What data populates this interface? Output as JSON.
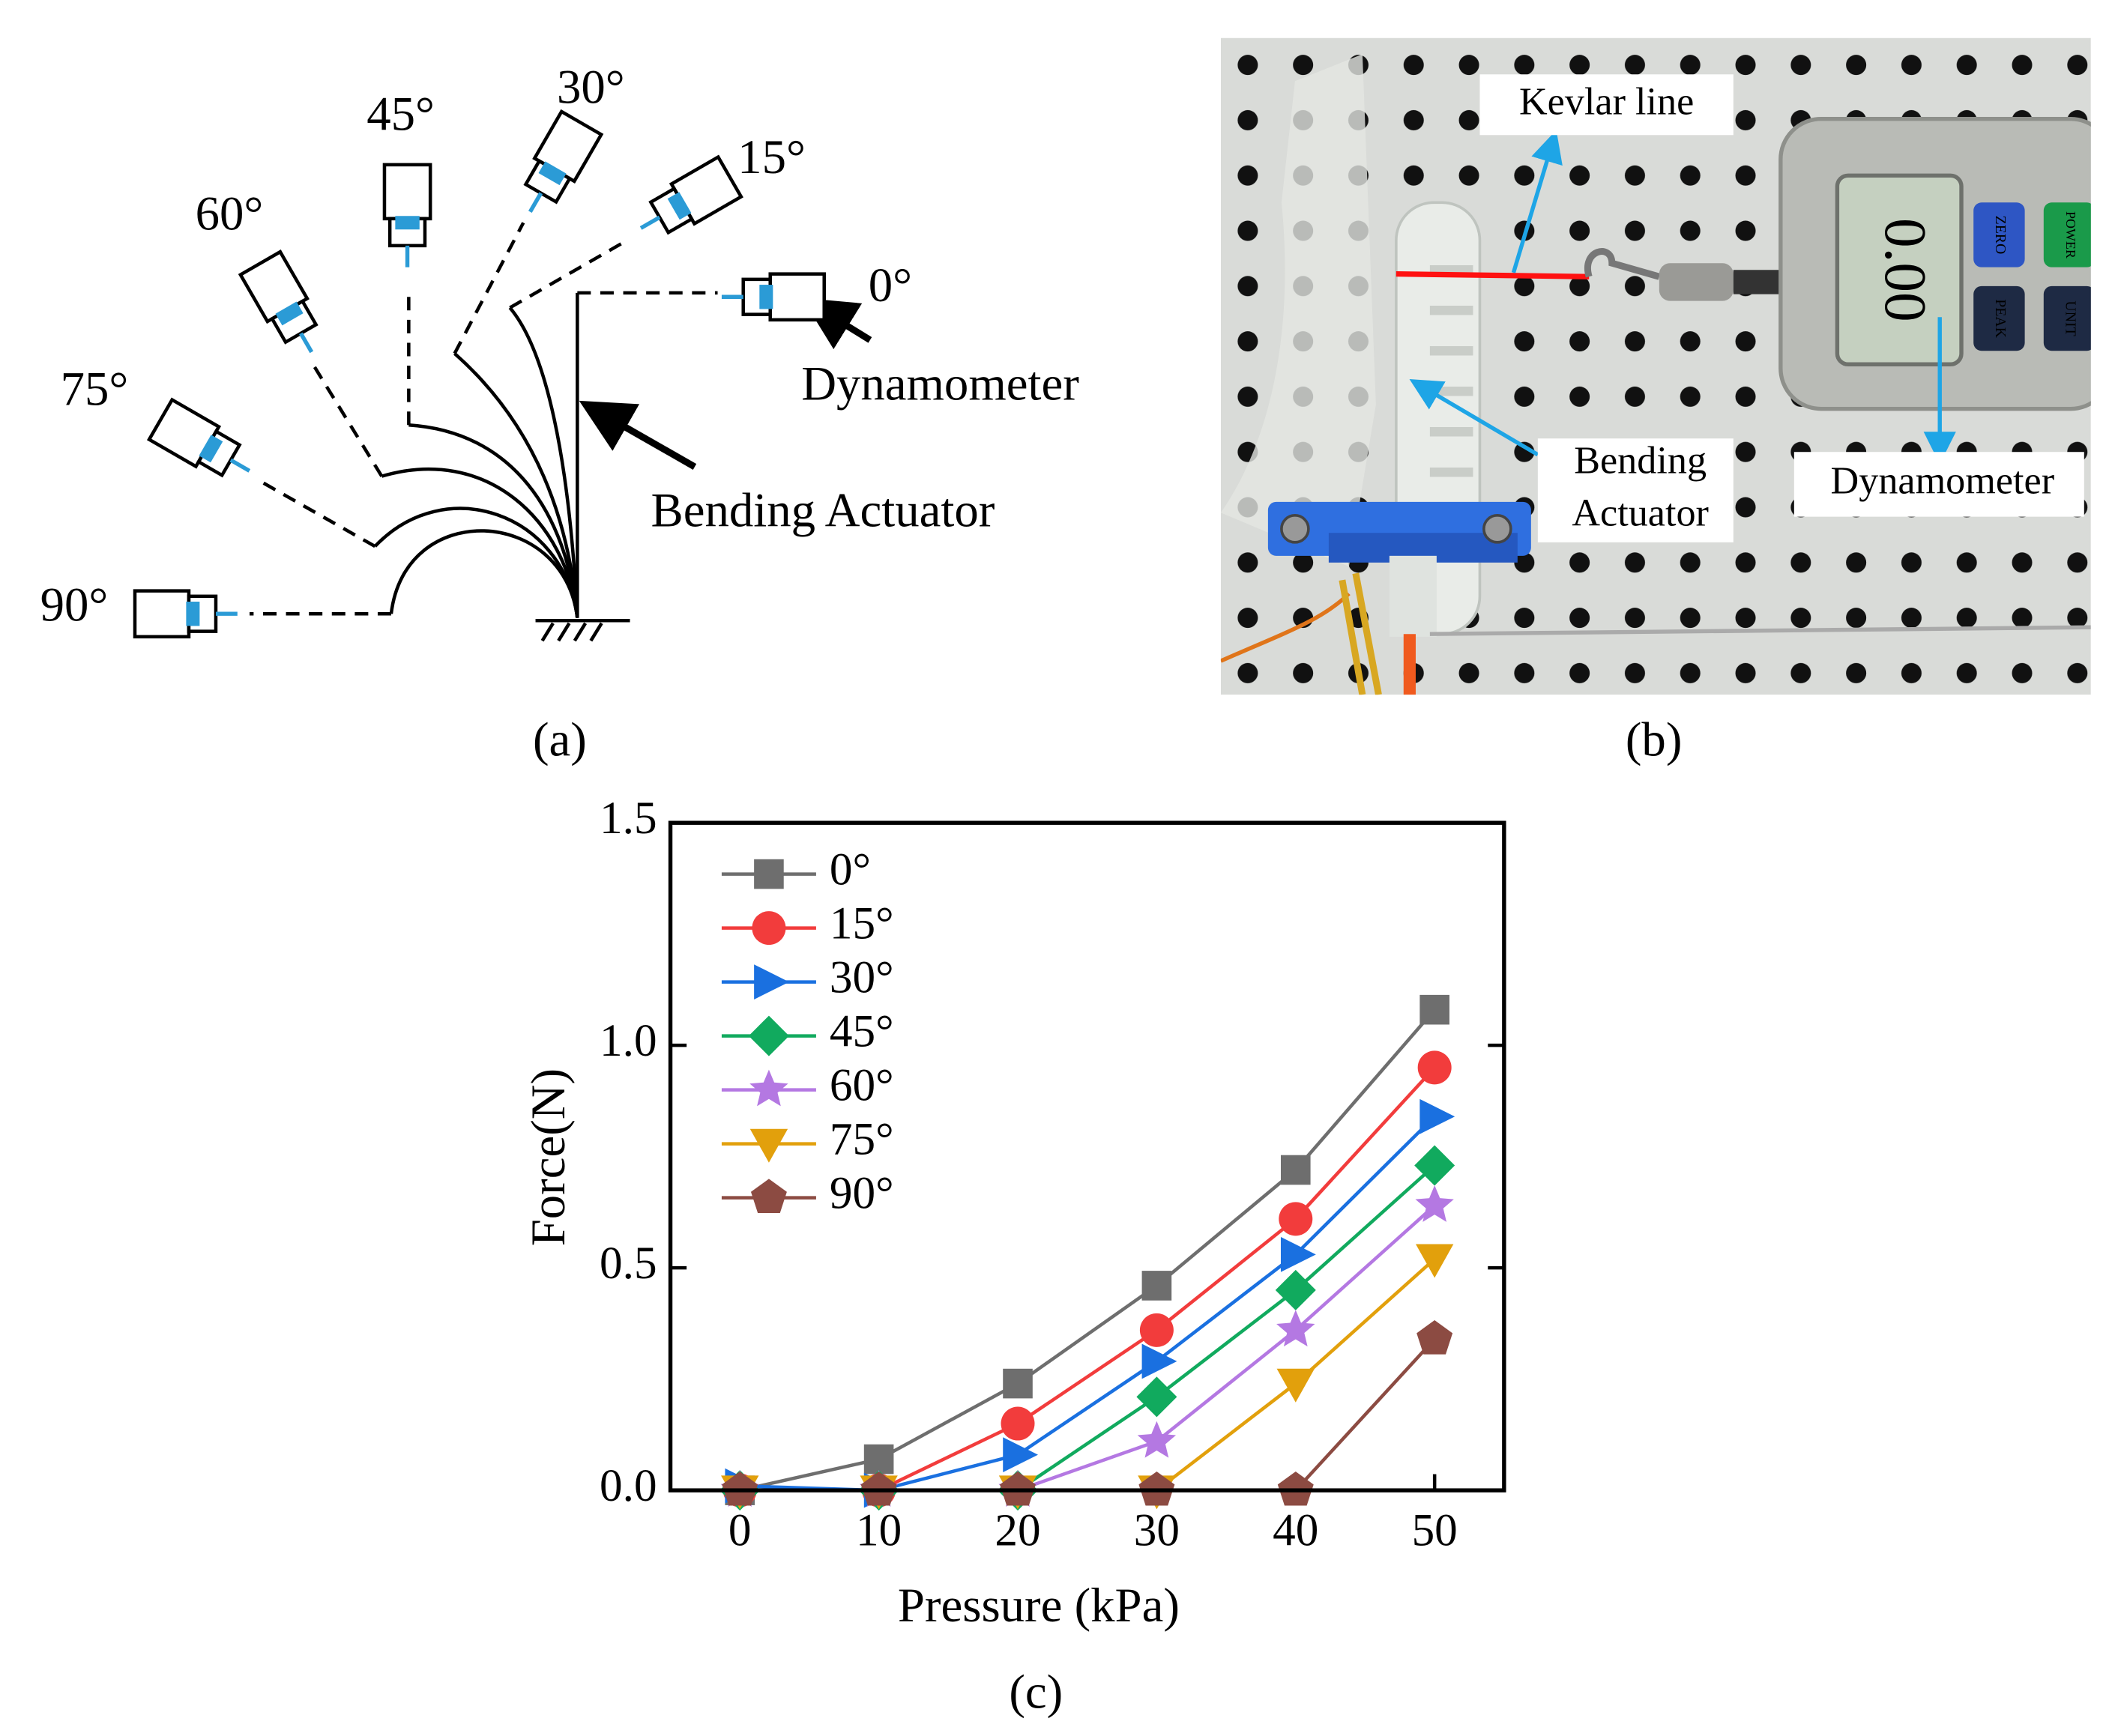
{
  "panel_a": {
    "angles": [
      "90°",
      "75°",
      "60°",
      "45°",
      "30°",
      "15°",
      "0°"
    ],
    "dynamometer": "Dynamometer",
    "actuator": "Bending Actuator",
    "label": "(a)"
  },
  "panel_b": {
    "kevlar": "Kevlar line",
    "actuator": [
      "Bending",
      "Actuator"
    ],
    "dynamometer": "Dynamometer",
    "buttons": [
      "ZERO",
      "POWER",
      "PEAK",
      "UNIT"
    ],
    "label": "(b)"
  },
  "chart_data": {
    "type": "line",
    "label": "(c)",
    "x_label": "Pressure (kPa)",
    "y_label": "Force(N)",
    "x": [
      0,
      10,
      20,
      30,
      40,
      50
    ],
    "xlim": [
      -5,
      55
    ],
    "xticks": [
      0,
      10,
      20,
      30,
      40,
      50
    ],
    "ylim": [
      0,
      1.5
    ],
    "yticks": [
      {
        "value": 0,
        "label": "0.0"
      },
      {
        "value": 0.5,
        "label": "0.5"
      },
      {
        "value": 1,
        "label": "1.0"
      },
      {
        "value": 1.5,
        "label": "1.5"
      }
    ],
    "legend": "upper left",
    "series": [
      {
        "name": "0°",
        "color": "#6e6e6e",
        "marker": "square",
        "values": [
          0,
          0.07,
          0.24,
          0.46,
          0.72,
          1.08
        ]
      },
      {
        "name": "15°",
        "color": "#f23c3c",
        "marker": "circle",
        "values": [
          0,
          0,
          0.15,
          0.36,
          0.61,
          0.95
        ]
      },
      {
        "name": "30°",
        "color": "#1a70e0",
        "marker": "triangle-right",
        "values": [
          0.01,
          0,
          0.08,
          0.29,
          0.53,
          0.84
        ]
      },
      {
        "name": "45°",
        "color": "#11aa5e",
        "marker": "diamond",
        "values": [
          0,
          0,
          0,
          0.21,
          0.45,
          0.73
        ]
      },
      {
        "name": "60°",
        "color": "#b478e2",
        "marker": "star",
        "values": [
          0,
          0,
          0,
          0.11,
          0.36,
          0.64
        ]
      },
      {
        "name": "75°",
        "color": "#e2a00c",
        "marker": "triangle-down",
        "values": [
          0,
          0,
          0,
          0,
          0.24,
          0.52
        ]
      },
      {
        "name": "90°",
        "color": "#8c4b42",
        "marker": "pentagon",
        "values": [
          0,
          0,
          0,
          0,
          0,
          0.34
        ]
      }
    ]
  }
}
